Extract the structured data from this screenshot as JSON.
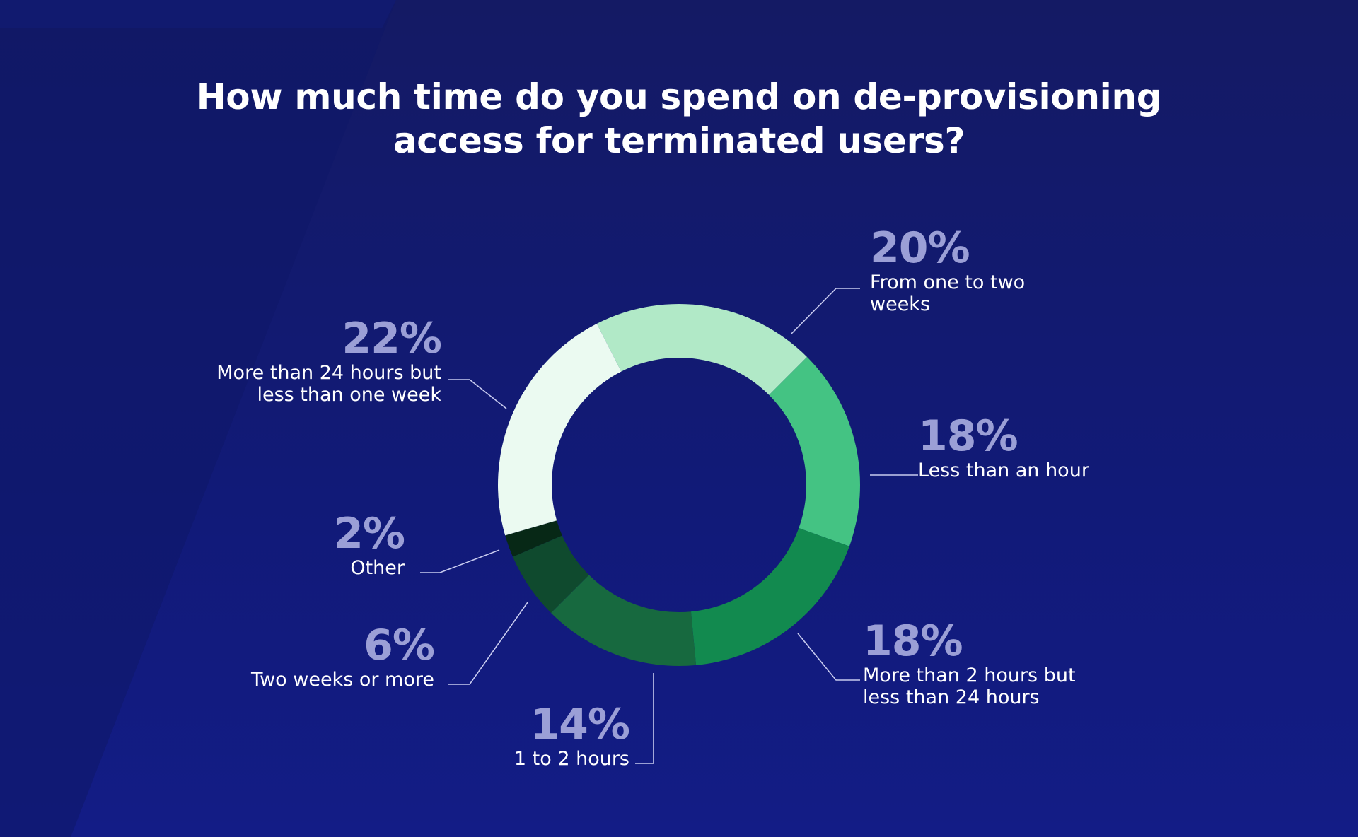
{
  "title": {
    "line1": "How much time do you spend on de-provisioning",
    "line2": "access for terminated users?"
  },
  "colors": {
    "background": "#121a78",
    "leader_line": "#c8cbef",
    "percent_text": "#9b9fd6"
  },
  "chart_data": {
    "type": "pie",
    "style": "donut",
    "title": "How much time do you spend on de-provisioning access for terminated users?",
    "slices": [
      {
        "label": "From one to two weeks",
        "value": 20,
        "display": "20%",
        "color": "#b1e9c7"
      },
      {
        "label": "Less than an hour",
        "value": 18,
        "display": "18%",
        "color": "#44c383"
      },
      {
        "label": "More than 2 hours but less than 24 hours",
        "value": 18,
        "display": "18%",
        "color": "#128a4f"
      },
      {
        "label": "1 to 2 hours",
        "value": 14,
        "display": "14%",
        "color": "#17693f"
      },
      {
        "label": "Two weeks or more",
        "value": 6,
        "display": "6%",
        "color": "#0f4a2e"
      },
      {
        "label": "Other",
        "value": 2,
        "display": "2%",
        "color": "#072816"
      },
      {
        "label": "More than 24 hours but less than one week",
        "value": 22,
        "display": "22%",
        "color": "#ebfaf1"
      }
    ],
    "start_angle_deg": -27,
    "legend": "callouts around donut"
  },
  "callouts": {
    "c0": {
      "pct": "20%",
      "lines": [
        "From one to two",
        "weeks"
      ]
    },
    "c1": {
      "pct": "18%",
      "lines": [
        "Less than an hour"
      ]
    },
    "c2": {
      "pct": "18%",
      "lines": [
        "More than 2 hours but",
        "less than 24 hours"
      ]
    },
    "c3": {
      "pct": "14%",
      "lines": [
        "1 to 2 hours"
      ]
    },
    "c4": {
      "pct": "6%",
      "lines": [
        "Two weeks or more"
      ]
    },
    "c5": {
      "pct": "2%",
      "lines": [
        "Other"
      ]
    },
    "c6": {
      "pct": "22%",
      "lines": [
        "More than 24 hours but",
        "less than one week"
      ]
    }
  }
}
